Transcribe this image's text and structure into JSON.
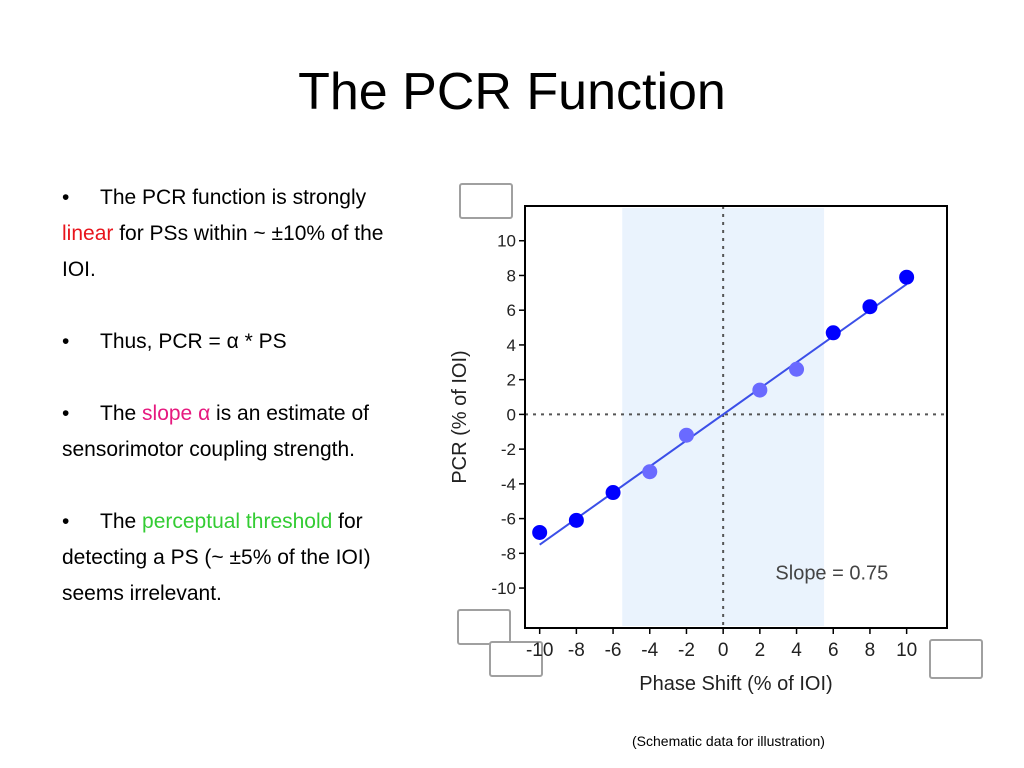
{
  "slide": {
    "title": "The PCR Function",
    "note": "(Schematic data for illustration)"
  },
  "bullets": [
    {
      "segments": [
        {
          "text": "The PCR function is strongly ",
          "color": null
        },
        {
          "text": "linear",
          "color": "#e8141c"
        },
        {
          "text": " for PSs within ~ ±10% of the IOI.",
          "color": null
        }
      ]
    },
    {
      "segments": [
        {
          "text": "Thus, PCR = α * PS",
          "color": null
        }
      ]
    },
    {
      "segments": [
        {
          "text": "The ",
          "color": null
        },
        {
          "text": "slope α",
          "color": "#e6197f"
        },
        {
          "text": " is an estimate of sensorimotor coupling strength.",
          "color": null
        }
      ]
    },
    {
      "segments": [
        {
          "text": "The ",
          "color": null
        },
        {
          "text": "perceptual threshold",
          "color": "#33cc33"
        },
        {
          "text": " for detecting a PS (~ ±5% of the IOI) seems irrelevant.",
          "color": null
        }
      ]
    }
  ],
  "chart_data": {
    "type": "scatter",
    "xlabel": "Phase Shift (% of IOI)",
    "ylabel": "PCR (% of IOI)",
    "xlim": [
      -10.8,
      12.2
    ],
    "ylim": [
      -12.3,
      12
    ],
    "xticks": [
      -10,
      -8,
      -6,
      -4,
      -2,
      0,
      2,
      4,
      6,
      8,
      10
    ],
    "yticks": [
      10,
      8,
      6,
      4,
      2,
      0,
      -2,
      -4,
      -6,
      -8,
      -10
    ],
    "shaded_band": [
      -5.5,
      5.5
    ],
    "reference_lines": {
      "x": 0,
      "y": 0,
      "style": "dotted"
    },
    "fit_line": {
      "x": [
        -10,
        10
      ],
      "y": [
        -7.5,
        7.5
      ]
    },
    "annotation": "Slope = 0.75",
    "points": [
      {
        "x": -10,
        "y": -6.8,
        "color": "#0000ff"
      },
      {
        "x": -8,
        "y": -6.1,
        "color": "#0000ff"
      },
      {
        "x": -6,
        "y": -4.5,
        "color": "#0000ff"
      },
      {
        "x": -4,
        "y": -3.3,
        "color": "#6a6aff"
      },
      {
        "x": -2,
        "y": -1.2,
        "color": "#6a6aff"
      },
      {
        "x": 2,
        "y": 1.4,
        "color": "#6a6aff"
      },
      {
        "x": 4,
        "y": 2.6,
        "color": "#6a6aff"
      },
      {
        "x": 6,
        "y": 4.7,
        "color": "#0000ff"
      },
      {
        "x": 8,
        "y": 6.2,
        "color": "#0000ff"
      },
      {
        "x": 10,
        "y": 7.9,
        "color": "#0000ff"
      }
    ],
    "colors": {
      "fit": "#3b4fe8",
      "band": "#eaf3fd",
      "grid_dots": "#555555"
    }
  }
}
